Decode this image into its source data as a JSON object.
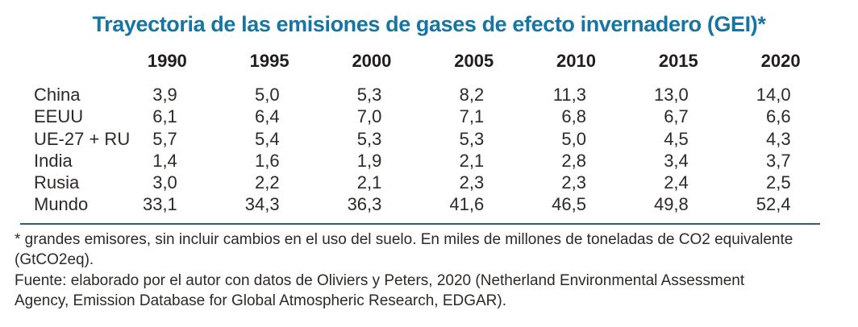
{
  "title": "Trayectoria de las emisiones de gases de efecto invernadero (GEI)*",
  "colors": {
    "title_blue": "#1675a3",
    "rule_blue": "#2f5d79",
    "text": "#2d2926",
    "background": "#ffffff"
  },
  "table": {
    "columns": [
      "1990",
      "1995",
      "2000",
      "2005",
      "2010",
      "2015",
      "2020"
    ],
    "rows": [
      {
        "label": "China",
        "values": [
          "3,9",
          "5,0",
          "5,3",
          "8,2",
          "11,3",
          "13,0",
          "14,0"
        ]
      },
      {
        "label": "EEUU",
        "values": [
          "6,1",
          "6,4",
          "7,0",
          "7,1",
          "6,8",
          "6,7",
          "6,6"
        ]
      },
      {
        "label": "UE-27 + RU",
        "values": [
          "5,7",
          "5,4",
          "5,3",
          "5,3",
          "5,0",
          "4,5",
          "4,3"
        ]
      },
      {
        "label": "India",
        "values": [
          "1,4",
          "1,6",
          "1,9",
          "2,1",
          "2,8",
          "3,4",
          "3,7"
        ]
      },
      {
        "label": "Rusia",
        "values": [
          "3,0",
          "2,2",
          "2,1",
          "2,3",
          "2,3",
          "2,4",
          "2,5"
        ]
      },
      {
        "label": "Mundo",
        "values": [
          "33,1",
          "34,3",
          "36,3",
          "41,6",
          "46,5",
          "49,8",
          "52,4"
        ]
      }
    ]
  },
  "footnotes": {
    "asterisk_note_lines": [
      "* grandes emisores, sin incluir cambios en el uso del suelo. En miles de millones de toneladas de CO2 equivalente",
      "(GtCO2eq)."
    ],
    "source_note_lines": [
      "Fuente: elaborado por el autor con datos de Oliviers y Peters, 2020 (Netherland Environmental Assessment",
      "Agency, Emission Database for Global Atmospheric Research, EDGAR)."
    ]
  },
  "chart_data": {
    "type": "table",
    "title": "Trayectoria de las emisiones de gases de efecto invernadero (GEI)*",
    "categories": [
      "1990",
      "1995",
      "2000",
      "2005",
      "2010",
      "2015",
      "2020"
    ],
    "series": [
      {
        "name": "China",
        "values": [
          3.9,
          5.0,
          5.3,
          8.2,
          11.3,
          13.0,
          14.0
        ]
      },
      {
        "name": "EEUU",
        "values": [
          6.1,
          6.4,
          7.0,
          7.1,
          6.8,
          6.7,
          6.6
        ]
      },
      {
        "name": "UE-27 + RU",
        "values": [
          5.7,
          5.4,
          5.3,
          5.3,
          5.0,
          4.5,
          4.3
        ]
      },
      {
        "name": "India",
        "values": [
          1.4,
          1.6,
          1.9,
          2.1,
          2.8,
          3.4,
          3.7
        ]
      },
      {
        "name": "Rusia",
        "values": [
          3.0,
          2.2,
          2.1,
          2.3,
          2.3,
          2.4,
          2.5
        ]
      },
      {
        "name": "Mundo",
        "values": [
          33.1,
          34.3,
          36.3,
          41.6,
          46.5,
          49.8,
          52.4
        ]
      }
    ],
    "units": "GtCO2eq (miles de millones de toneladas de CO2 equivalente)",
    "decimal_separator": ",",
    "notes": "grandes emisores, sin incluir cambios en el uso del suelo",
    "source": "elaborado por el autor con datos de Oliviers y Peters, 2020 (Netherland Environmental Assessment Agency, Emission Database for Global Atmospheric Research, EDGAR)"
  }
}
